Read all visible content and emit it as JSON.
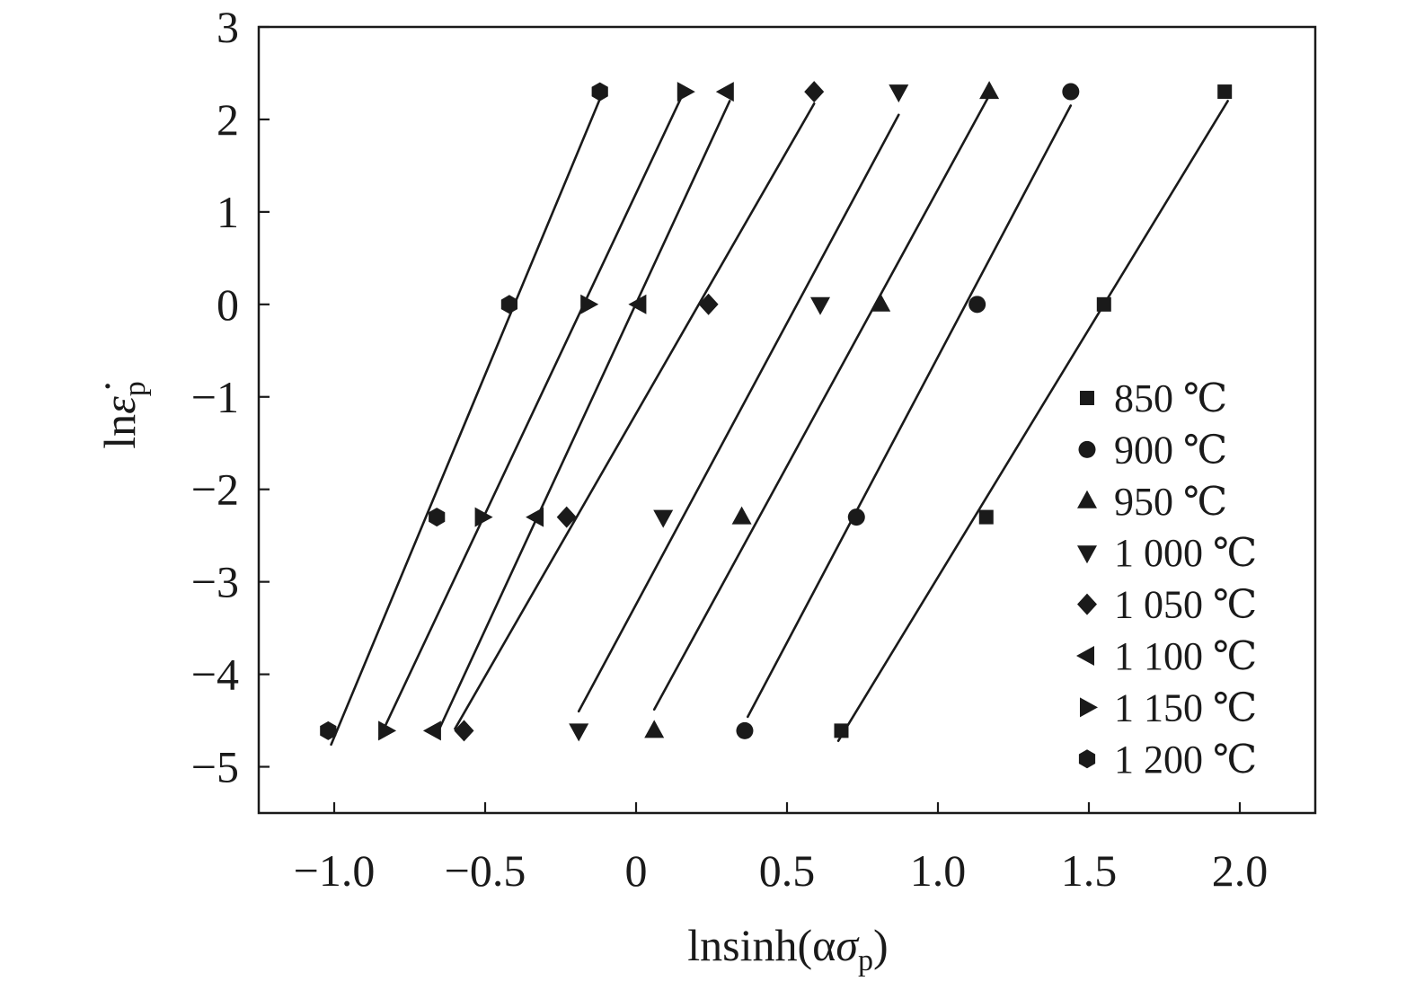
{
  "chart_data": {
    "type": "scatter",
    "title": "",
    "xlabel": {
      "pre": "lnsinh(α",
      "sym": "σ",
      "sub": "p",
      "post": ")"
    },
    "ylabel": {
      "pre": "ln",
      "sym": "ε̇",
      "sub": "p"
    },
    "xlim": [
      -1.25,
      2.25
    ],
    "ylim": [
      -5.5,
      3
    ],
    "xticks": [
      -1.0,
      -0.5,
      0,
      0.5,
      1.0,
      1.5,
      2.0
    ],
    "xtick_labels": [
      "−1.0",
      "−0.5",
      "0",
      "0.5",
      "1.0",
      "1.5",
      "2.0"
    ],
    "yticks": [
      3,
      2,
      1,
      0,
      -1,
      -2,
      -3,
      -4,
      -5
    ],
    "ytick_labels": [
      "3",
      "2",
      "1",
      "0",
      "−1",
      "−2",
      "−3",
      "−4",
      "−5"
    ],
    "grid": false,
    "legend": {
      "position": "right"
    },
    "color": "#1a1a1a",
    "series": [
      {
        "name": "850 ℃",
        "marker": "square",
        "x": [
          1.95,
          1.55,
          1.16,
          0.68
        ],
        "y": [
          2.3,
          0,
          -2.3,
          -4.61
        ],
        "fit": {
          "x": [
            0.67,
            1.96
          ],
          "y": [
            -4.72,
            2.2
          ]
        }
      },
      {
        "name": "900 ℃",
        "marker": "circle",
        "x": [
          1.44,
          1.13,
          0.73,
          0.36
        ],
        "y": [
          2.3,
          0,
          -2.3,
          -4.61
        ],
        "fit": {
          "x": [
            0.37,
            1.44
          ],
          "y": [
            -4.46,
            2.15
          ]
        }
      },
      {
        "name": "950 ℃",
        "marker": "triangle-up",
        "x": [
          1.17,
          0.81,
          0.35,
          0.06
        ],
        "y": [
          2.3,
          0,
          -2.3,
          -4.61
        ],
        "fit": {
          "x": [
            0.06,
            1.17
          ],
          "y": [
            -4.38,
            2.26
          ]
        }
      },
      {
        "name": "1 000 ℃",
        "marker": "triangle-down",
        "x": [
          0.87,
          0.61,
          0.09,
          -0.19
        ],
        "y": [
          2.3,
          0,
          -2.3,
          -4.61
        ],
        "fit": {
          "x": [
            -0.19,
            0.87
          ],
          "y": [
            -4.4,
            2.05
          ]
        }
      },
      {
        "name": "1 050 ℃",
        "marker": "diamond",
        "x": [
          0.59,
          0.24,
          -0.23,
          -0.57
        ],
        "y": [
          2.3,
          0,
          -2.3,
          -4.61
        ],
        "fit": {
          "x": [
            -0.6,
            0.59
          ],
          "y": [
            -4.59,
            2.17
          ]
        }
      },
      {
        "name": "1 100 ℃",
        "marker": "triangle-left",
        "x": [
          0.3,
          0.01,
          -0.33,
          -0.67
        ],
        "y": [
          2.3,
          0,
          -2.3,
          -4.61
        ],
        "fit": {
          "x": [
            -0.66,
            0.31
          ],
          "y": [
            -4.65,
            2.2
          ]
        }
      },
      {
        "name": "1 150 ℃",
        "marker": "triangle-right",
        "x": [
          0.16,
          -0.16,
          -0.51,
          -0.83
        ],
        "y": [
          2.3,
          0,
          -2.3,
          -4.61
        ],
        "fit": {
          "x": [
            -0.85,
            0.15
          ],
          "y": [
            -4.69,
            2.24
          ]
        }
      },
      {
        "name": "1 200 ℃",
        "marker": "hexagon",
        "x": [
          -0.12,
          -0.42,
          -0.66,
          -1.02
        ],
        "y": [
          2.3,
          0,
          -2.3,
          -4.61
        ],
        "fit": {
          "x": [
            -1.01,
            -0.12
          ],
          "y": [
            -4.76,
            2.22
          ]
        }
      }
    ]
  }
}
